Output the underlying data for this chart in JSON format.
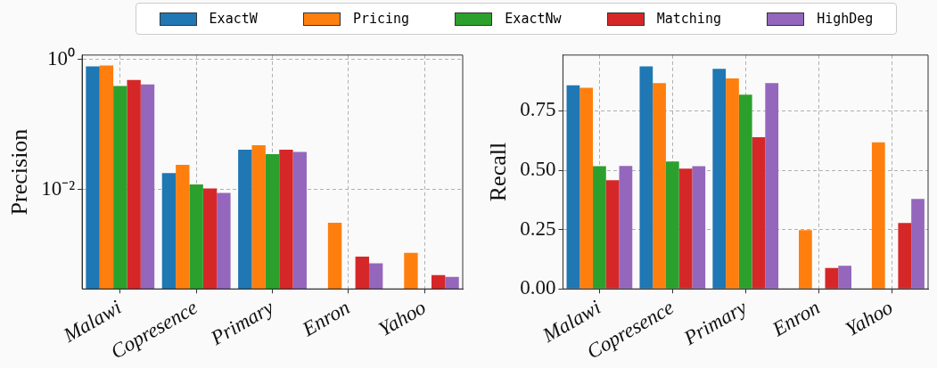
{
  "chart_data": [
    {
      "type": "bar",
      "ylabel": "Precision",
      "categories": [
        "Malawi",
        "Copresence",
        "Primary",
        "Enron",
        "Yahoo"
      ],
      "log": "y",
      "ylim": [
        0.000316,
        1.16
      ],
      "yticks": [
        {
          "value": 1,
          "label": "10⁰"
        },
        {
          "value": 0.01,
          "label": "10⁻²"
        }
      ],
      "grid": true,
      "legend": "top",
      "series": [
        {
          "name": "ExactW",
          "color": "#1f77b4",
          "values": [
            0.78,
            0.018,
            0.041,
            null,
            null
          ]
        },
        {
          "name": "Pricing",
          "color": "#ff7f0e",
          "values": [
            0.8,
            0.024,
            0.048,
            0.0031,
            0.00107
          ]
        },
        {
          "name": "ExactNw",
          "color": "#2ca02c",
          "values": [
            0.39,
            0.012,
            0.035,
            null,
            null
          ]
        },
        {
          "name": "Matching",
          "color": "#d62728",
          "values": [
            0.48,
            0.0104,
            0.041,
            0.00094,
            0.00049
          ]
        },
        {
          "name": "HighDeg",
          "color": "#9467bd",
          "values": [
            0.41,
            0.0089,
            0.038,
            0.00074,
            0.00046
          ]
        }
      ]
    },
    {
      "type": "bar",
      "ylabel": "Recall",
      "categories": [
        "Malawi",
        "Copresence",
        "Primary",
        "Enron",
        "Yahoo"
      ],
      "ylim": [
        0,
        0.985
      ],
      "yticks": [
        {
          "value": 0,
          "label": "0.00"
        },
        {
          "value": 0.25,
          "label": "0.25"
        },
        {
          "value": 0.5,
          "label": "0.50"
        },
        {
          "value": 0.75,
          "label": "0.75"
        }
      ],
      "grid": true,
      "series": [
        {
          "color": "#1f77b4",
          "values": [
            0.858,
            0.937,
            0.927,
            null,
            null
          ]
        },
        {
          "color": "#ff7f0e",
          "values": [
            0.847,
            0.867,
            0.887,
            0.248,
            0.617
          ]
        },
        {
          "color": "#2ca02c",
          "values": [
            0.517,
            0.537,
            0.818,
            null,
            null
          ]
        },
        {
          "color": "#d62728",
          "values": [
            0.458,
            0.507,
            0.639,
            0.088,
            0.278
          ]
        },
        {
          "color": "#9467bd",
          "values": [
            0.518,
            0.517,
            0.867,
            0.098,
            0.379
          ]
        }
      ]
    }
  ]
}
